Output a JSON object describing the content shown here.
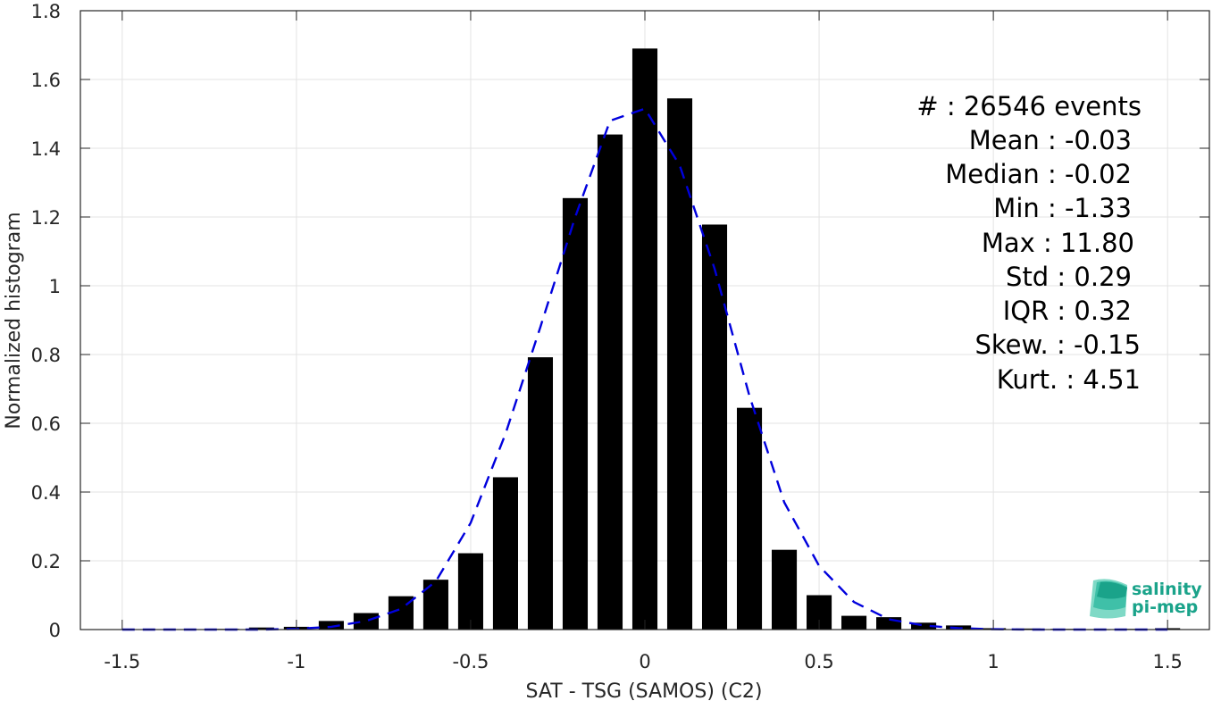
{
  "chart_data": {
    "type": "bar",
    "xlabel": "SAT - TSG (SAMOS) (C2)",
    "ylabel": "Normalized histogram",
    "xlim": [
      -1.62,
      1.62
    ],
    "ylim": [
      0,
      1.8
    ],
    "xticks": [
      "-1.5",
      "-1",
      "-0.5",
      "0",
      "0.5",
      "1",
      "1.5"
    ],
    "xtick_values": [
      -1.5,
      -1,
      -0.5,
      0,
      0.5,
      1,
      1.5
    ],
    "yticks": [
      "0",
      "0.2",
      "0.4",
      "0.6",
      "0.8",
      "1",
      "1.2",
      "1.4",
      "1.6",
      "1.8"
    ],
    "ytick_values": [
      0,
      0.2,
      0.4,
      0.6,
      0.8,
      1,
      1.2,
      1.4,
      1.6,
      1.8
    ],
    "grid": true,
    "bars": {
      "color": "#000000",
      "x": [
        -1.5,
        -1.4,
        -1.3,
        -1.2,
        -1.1,
        -1.0,
        -0.9,
        -0.8,
        -0.7,
        -0.6,
        -0.5,
        -0.4,
        -0.3,
        -0.2,
        -0.1,
        0.0,
        0.1,
        0.2,
        0.3,
        0.4,
        0.5,
        0.6,
        0.7,
        0.8,
        0.9,
        1.0,
        1.1,
        1.2,
        1.3,
        1.4,
        1.5
      ],
      "values": [
        0,
        0,
        0,
        0.002,
        0.006,
        0.008,
        0.025,
        0.048,
        0.097,
        0.145,
        0.222,
        0.443,
        0.792,
        1.255,
        1.44,
        1.69,
        1.545,
        1.178,
        0.645,
        0.232,
        0.1,
        0.04,
        0.036,
        0.02,
        0.012,
        0.004,
        0.003,
        0.002,
        0.001,
        0.002,
        0.004
      ]
    },
    "fit": {
      "style": "dashed",
      "color": "#0000dd",
      "x": [
        -1.5,
        -1.4,
        -1.3,
        -1.2,
        -1.1,
        -1.0,
        -0.9,
        -0.8,
        -0.7,
        -0.6,
        -0.5,
        -0.4,
        -0.3,
        -0.2,
        -0.1,
        0.0,
        0.1,
        0.2,
        0.3,
        0.4,
        0.5,
        0.6,
        0.7,
        0.8,
        0.9,
        1.0,
        1.1,
        1.2,
        1.3,
        1.4,
        1.5
      ],
      "values": [
        0,
        0,
        0,
        0,
        0,
        0.002,
        0.008,
        0.025,
        0.06,
        0.14,
        0.31,
        0.57,
        0.88,
        1.2,
        1.48,
        1.515,
        1.35,
        1.05,
        0.68,
        0.37,
        0.185,
        0.08,
        0.03,
        0.012,
        0.004,
        0.001,
        0,
        0,
        0,
        0,
        0
      ]
    },
    "annotations": [
      "#  : 26546 events",
      "Mean : -0.03",
      "Median : -0.02",
      "Min : -1.33",
      "Max : 11.80",
      "Std : 0.29",
      "IQR : 0.32",
      "Skew. : -0.15",
      "Kurt. : 4.51"
    ]
  },
  "logo": {
    "line1": "salinity",
    "line2": "pi-mep",
    "colors": [
      "#1aa38a",
      "#3fc0a8",
      "#7fd9c6"
    ]
  }
}
